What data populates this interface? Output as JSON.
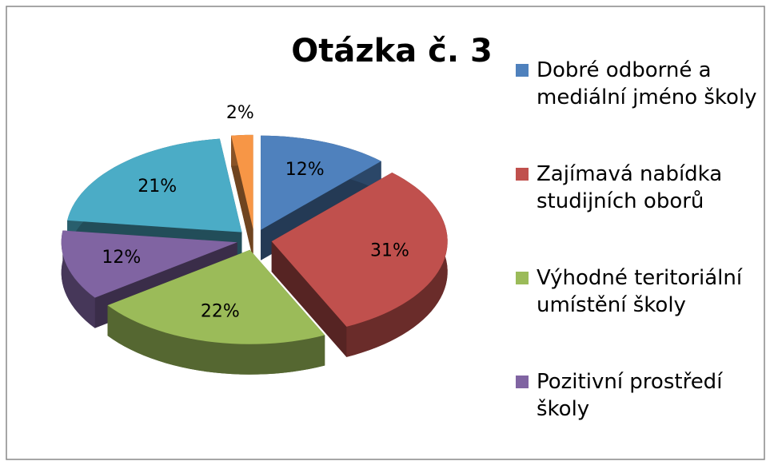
{
  "chart_data": {
    "type": "pie",
    "title": "Otázka č. 3",
    "categories": [
      "Dobré odborné a mediální jméno školy",
      "Zajímavá nabídka studijních oborů",
      "Výhodné teritoriální umístění školy",
      "Pozitivní prostředí školy",
      null,
      null
    ],
    "values": [
      12,
      31,
      22,
      12,
      21,
      2
    ],
    "value_labels": [
      "12%",
      "31%",
      "22%",
      "12%",
      "21%",
      "2%"
    ],
    "colors": [
      "#4f81bd",
      "#c0504d",
      "#9bbb59",
      "#8064a2",
      "#4bacc6",
      "#f79646"
    ],
    "legend": "right"
  }
}
